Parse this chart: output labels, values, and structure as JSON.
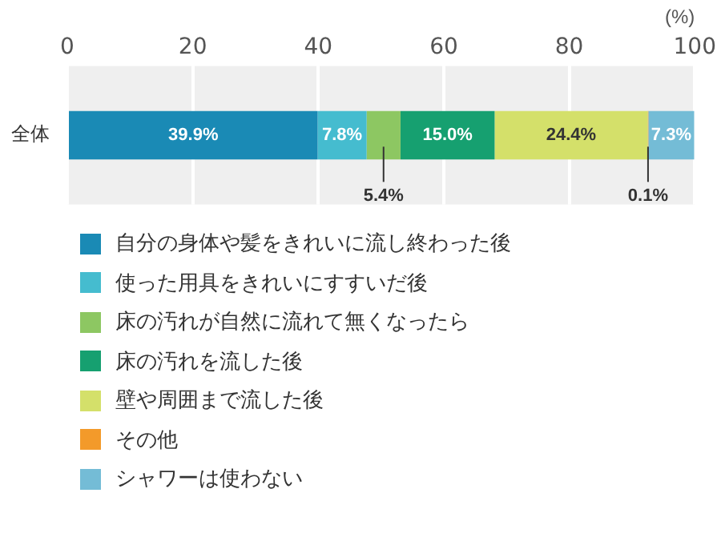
{
  "chart_data": {
    "type": "bar",
    "orientation": "horizontal",
    "stacked": true,
    "categories": [
      "全体"
    ],
    "xlabel": "(%)",
    "xlim": [
      0,
      100
    ],
    "xticks": [
      0,
      20,
      40,
      60,
      80,
      100
    ],
    "grid": "x",
    "legend": "bottom",
    "series": [
      {
        "name": "自分の身体や髪をきれいに流し終わった後",
        "color": "#1a8ab5",
        "values": [
          39.9
        ],
        "value_labels": [
          "39.9%"
        ]
      },
      {
        "name": "使った用具をきれいにすすいだ後",
        "color": "#45bccf",
        "values": [
          7.8
        ],
        "value_labels": [
          "7.8%"
        ]
      },
      {
        "name": "床の汚れが自然に流れて無くなったら",
        "color": "#8dc762",
        "values": [
          5.4
        ],
        "value_labels": [
          "5.4%"
        ]
      },
      {
        "name": "床の汚れを流した後",
        "color": "#16a070",
        "values": [
          15.0
        ],
        "value_labels": [
          "15.0%"
        ]
      },
      {
        "name": "壁や周囲まで流した後",
        "color": "#d4e06a",
        "values": [
          24.4
        ],
        "value_labels": [
          "24.4%"
        ]
      },
      {
        "name": "その他",
        "color": "#f39a2a",
        "values": [
          0.1
        ],
        "value_labels": [
          "0.1%"
        ]
      },
      {
        "name": "シャワーは使わない",
        "color": "#74bcd6",
        "values": [
          7.3
        ],
        "value_labels": [
          "7.3%"
        ]
      }
    ]
  }
}
